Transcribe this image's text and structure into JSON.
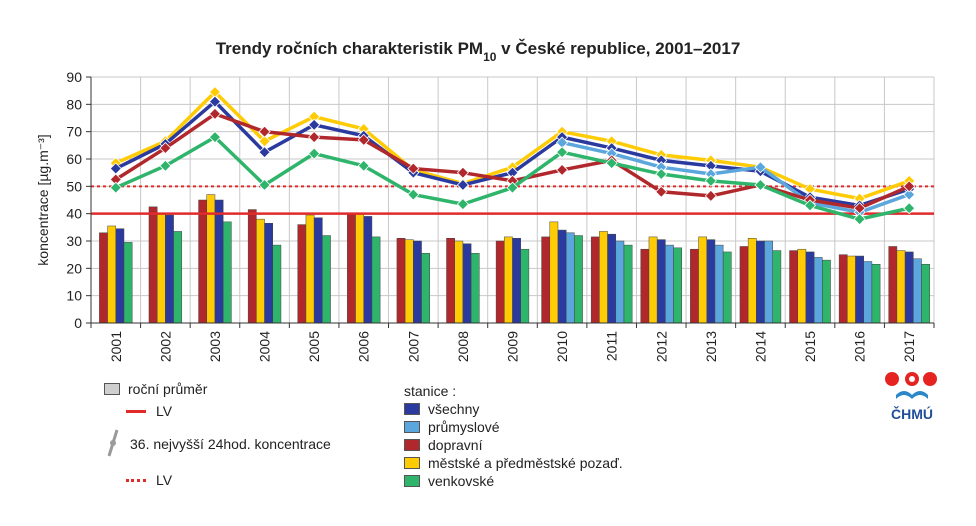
{
  "legend": {
    "annual_mean": "roční průměr",
    "lv_annual": "LV",
    "percentile": "36. nejvyšší 24hod. koncentrace",
    "lv_daily": "LV",
    "stations_label": "stanice :",
    "stations": [
      "všechny",
      "průmyslové",
      "dopravní",
      "městské a předměstské pozaď.",
      "venkovské"
    ]
  },
  "logo": {
    "text": "ČHMÚ"
  },
  "colors": {
    "všechny": "#2b3a9e",
    "průmyslové": "#5aa6dd",
    "dopravní": "#b1282c",
    "městské a předměstské pozaď.": "#ffcb05",
    "venkovské": "#2eb56b",
    "lv": "#e12b2b"
  },
  "chart_data": {
    "type": "bar+line",
    "title": "Trendy ročních charakteristik PM10 v České republice, 2001–2017",
    "ylabel": "koncentrace [µg.m⁻³]",
    "ylim": [
      0,
      90
    ],
    "yticks": [
      0,
      10,
      20,
      30,
      40,
      50,
      60,
      70,
      80,
      90
    ],
    "categories": [
      "2001",
      "2002",
      "2003",
      "2004",
      "2005",
      "2006",
      "2007",
      "2008",
      "2009",
      "2010",
      "2011",
      "2012",
      "2013",
      "2014",
      "2015",
      "2016",
      "2017"
    ],
    "lv_annual": 40,
    "lv_daily": 50,
    "bar_order": [
      "dopravní",
      "městské a předměstské pozaď.",
      "všechny",
      "průmyslové",
      "venkovské"
    ],
    "bars": [
      {
        "name": "dopravní",
        "values": [
          33,
          42.5,
          45,
          41.5,
          36,
          40,
          31,
          31,
          30,
          31.5,
          31.5,
          27,
          27,
          28,
          26.5,
          25,
          28
        ]
      },
      {
        "name": "městské a předměstské pozaď.",
        "values": [
          35.5,
          40,
          47,
          38,
          39.5,
          40,
          30.5,
          30,
          31.5,
          37,
          33.5,
          31.5,
          31.5,
          31,
          27,
          24.5,
          26.5
        ]
      },
      {
        "name": "všechny",
        "values": [
          34.5,
          39.5,
          45,
          36.5,
          38.5,
          39,
          30,
          29,
          31,
          34,
          32.5,
          30.5,
          30.5,
          30,
          26,
          24.5,
          26
        ]
      },
      {
        "name": "průmyslové",
        "values": [
          null,
          null,
          null,
          null,
          null,
          null,
          null,
          null,
          null,
          33,
          30,
          28.5,
          28.5,
          30,
          24,
          22.5,
          23.5
        ]
      },
      {
        "name": "venkovské",
        "values": [
          29.5,
          33.5,
          37,
          28.5,
          32,
          31.5,
          25.5,
          25.5,
          27,
          32,
          28.5,
          27.5,
          26,
          26.5,
          23,
          21.5,
          21.5
        ]
      }
    ],
    "lines": [
      {
        "name": "městské a předměstské pozaď.",
        "values": [
          58.5,
          66.5,
          84.5,
          66.5,
          75.5,
          71,
          56,
          51,
          57,
          70,
          66.5,
          61.5,
          59.5,
          57,
          49,
          45.5,
          52
        ]
      },
      {
        "name": "všechny",
        "values": [
          56.5,
          65.5,
          81,
          62.5,
          72.5,
          68.5,
          55,
          50.5,
          55,
          68,
          64,
          59.5,
          57.5,
          55.5,
          46,
          43,
          49
        ]
      },
      {
        "name": "průmyslové",
        "values": [
          null,
          null,
          null,
          null,
          null,
          null,
          null,
          null,
          null,
          66,
          62,
          57,
          54.5,
          57,
          44,
          40.5,
          47
        ]
      },
      {
        "name": "dopravní",
        "values": [
          52.5,
          64,
          76.5,
          70,
          68,
          67,
          56.5,
          55,
          52,
          56,
          59.5,
          48,
          46.5,
          50.5,
          45,
          42,
          50
        ]
      },
      {
        "name": "venkovské",
        "values": [
          49.5,
          57.5,
          68,
          50.5,
          62,
          57.5,
          47,
          43.5,
          49.5,
          62.5,
          58.5,
          54.5,
          52,
          50.5,
          43,
          38,
          42
        ]
      }
    ],
    "grid": true,
    "legend_position": "bottom-left"
  }
}
